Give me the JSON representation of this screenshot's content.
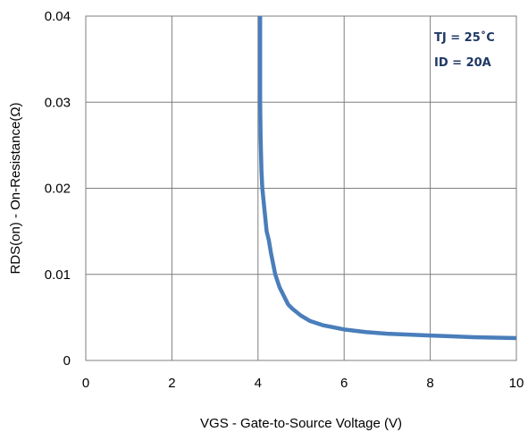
{
  "chart_data": {
    "type": "line",
    "title": "",
    "xlabel": "VGS - Gate-to-Source Voltage (V)",
    "ylabel": "RDS(on) - On-Resistance(Ω)",
    "xlim": [
      0,
      10
    ],
    "ylim": [
      0,
      0.04
    ],
    "xticks": [
      "0",
      "2",
      "4",
      "6",
      "8",
      "10"
    ],
    "yticks": [
      "0",
      "0.01",
      "0.02",
      "0.03",
      "0.04"
    ],
    "grid": true,
    "annotations": [
      "TJ = 25˚C",
      "ID = 20A"
    ],
    "series": [
      {
        "name": "",
        "color": "#4a7ebb",
        "x": [
          4.05,
          4.05,
          4.06,
          4.08,
          4.1,
          4.15,
          4.2,
          4.25,
          4.3,
          4.4,
          4.5,
          4.6,
          4.7,
          4.8,
          5.0,
          5.2,
          5.5,
          6.0,
          6.5,
          7.0,
          8.0,
          9.0,
          10.0
        ],
        "y": [
          0.04,
          0.03,
          0.026,
          0.022,
          0.02,
          0.0175,
          0.015,
          0.014,
          0.0125,
          0.01,
          0.0085,
          0.0075,
          0.0065,
          0.006,
          0.0052,
          0.0046,
          0.0041,
          0.0036,
          0.0033,
          0.0031,
          0.0029,
          0.0027,
          0.0026
        ]
      }
    ]
  }
}
